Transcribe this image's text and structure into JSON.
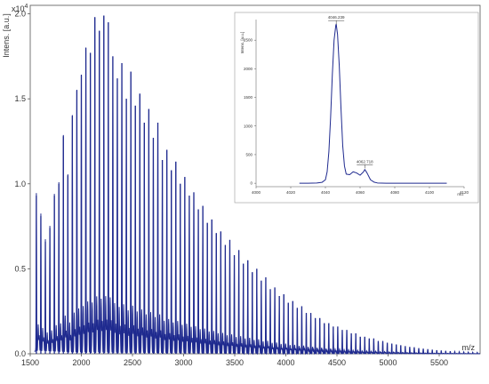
{
  "chart_data": [
    {
      "type": "line",
      "title": "",
      "ylabel": "Intens. [a.u.]",
      "xlabel": "m/z",
      "y_multiplier": "x10",
      "y_multiplier_exp": "4",
      "xlim": [
        1500,
        5900
      ],
      "ylim": [
        0,
        2.05
      ],
      "x_ticks": [
        "1500",
        "2000",
        "2500",
        "3000",
        "3500",
        "4000",
        "4500",
        "5000",
        "5500"
      ],
      "y_ticks": [
        "0.0",
        "0.5",
        "1.0",
        "1.5",
        "2.0"
      ],
      "color": "#1f2a8f",
      "peaks": {
        "x": [
          1560,
          1604,
          1648,
          1692,
          1736,
          1780,
          1824,
          1868,
          1912,
          1956,
          2000,
          2044,
          2088,
          2132,
          2176,
          2220,
          2264,
          2308,
          2352,
          2396,
          2440,
          2484,
          2528,
          2572,
          2616,
          2660,
          2704,
          2748,
          2792,
          2836,
          2880,
          2924,
          2968,
          3012,
          3056,
          3100,
          3144,
          3188,
          3232,
          3276,
          3320,
          3364,
          3408,
          3452,
          3496,
          3540,
          3584,
          3628,
          3672,
          3716,
          3760,
          3804,
          3848,
          3892,
          3936,
          3980,
          4024,
          4068,
          4112,
          4156,
          4200,
          4244,
          4288,
          4332,
          4376,
          4420,
          4464,
          4508,
          4552,
          4596,
          4640,
          4684,
          4728,
          4772,
          4816,
          4860,
          4904,
          4948,
          4992,
          5036,
          5080,
          5124,
          5168,
          5212,
          5256,
          5300,
          5344,
          5388,
          5432,
          5476,
          5520,
          5564,
          5608,
          5652,
          5696,
          5740,
          5784,
          5828,
          5872
        ],
        "y": [
          0.93,
          0.81,
          0.66,
          0.74,
          0.93,
          1.0,
          1.28,
          1.05,
          1.4,
          1.55,
          1.64,
          1.8,
          1.77,
          1.98,
          1.9,
          1.99,
          1.95,
          1.75,
          1.62,
          1.71,
          1.5,
          1.66,
          1.46,
          1.53,
          1.36,
          1.44,
          1.27,
          1.36,
          1.14,
          1.2,
          1.08,
          1.13,
          1.0,
          1.04,
          0.93,
          0.95,
          0.85,
          0.87,
          0.77,
          0.79,
          0.71,
          0.72,
          0.64,
          0.67,
          0.58,
          0.61,
          0.53,
          0.55,
          0.48,
          0.5,
          0.43,
          0.45,
          0.38,
          0.39,
          0.34,
          0.35,
          0.3,
          0.31,
          0.27,
          0.28,
          0.24,
          0.24,
          0.21,
          0.21,
          0.18,
          0.18,
          0.16,
          0.16,
          0.14,
          0.14,
          0.12,
          0.12,
          0.1,
          0.1,
          0.09,
          0.09,
          0.075,
          0.075,
          0.065,
          0.06,
          0.055,
          0.05,
          0.045,
          0.04,
          0.038,
          0.033,
          0.03,
          0.027,
          0.024,
          0.021,
          0.019,
          0.017,
          0.015,
          0.013,
          0.012,
          0.011,
          0.01,
          0.009,
          0.008
        ]
      }
    },
    {
      "type": "line",
      "title": "",
      "ylabel": "Intens. [a.u.]",
      "xlabel": "m/z",
      "xlim": [
        4000,
        4120
      ],
      "ylim": [
        -60,
        2860
      ],
      "x_ticks": [
        "4000",
        "4020",
        "4040",
        "4060",
        "4080",
        "4100",
        "4120"
      ],
      "y_ticks": [
        "0",
        "500",
        "1000",
        "1500",
        "2000",
        "2500"
      ],
      "color": "#1f2a8f",
      "annotations": [
        {
          "label": "4046.239",
          "x": 4046.239,
          "y": 2780
        },
        {
          "label": "4062.718",
          "x": 4062.718,
          "y": 260
        }
      ],
      "series": {
        "x": [
          4025,
          4030,
          4035,
          4038,
          4040,
          4041,
          4042,
          4043,
          4044,
          4045,
          4046,
          4046.24,
          4047,
          4048,
          4049,
          4050,
          4051,
          4052,
          4054,
          4056,
          4058,
          4060,
          4062,
          4062.72,
          4064,
          4066,
          4068,
          4070,
          4075,
          4080,
          4090,
          4100,
          4110
        ],
        "y": [
          0,
          0,
          5,
          15,
          60,
          200,
          550,
          1150,
          1900,
          2500,
          2760,
          2780,
          2600,
          2050,
          1300,
          650,
          300,
          160,
          150,
          200,
          180,
          140,
          200,
          240,
          180,
          60,
          20,
          5,
          0,
          0,
          0,
          0,
          0
        ]
      }
    }
  ]
}
